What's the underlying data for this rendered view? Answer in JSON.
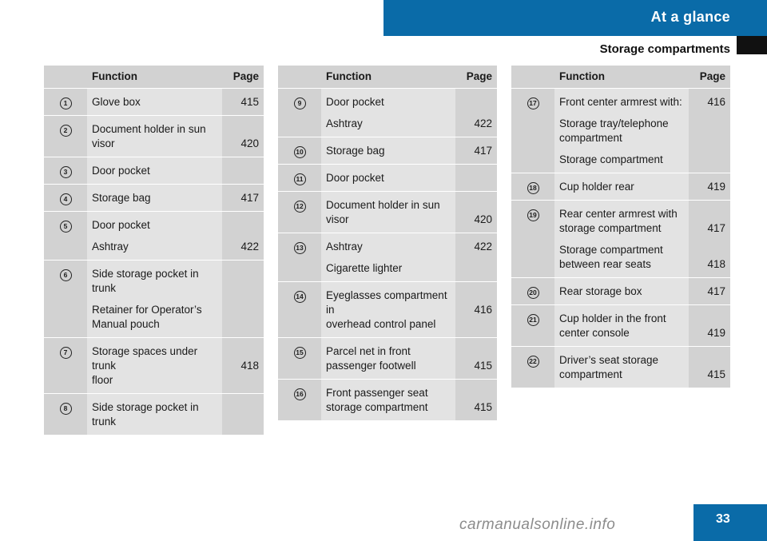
{
  "header": {
    "title": "At a glance",
    "section": "Storage compartments"
  },
  "columns": {
    "function": "Function",
    "page": "Page"
  },
  "tables": [
    {
      "rows": [
        {
          "num": "1",
          "items": [
            {
              "lines": [
                "Glove box"
              ],
              "page": "415"
            }
          ]
        },
        {
          "num": "2",
          "items": [
            {
              "lines": [
                "Document holder in sun",
                "visor"
              ],
              "page": "420"
            }
          ]
        },
        {
          "num": "3",
          "items": [
            {
              "lines": [
                "Door pocket"
              ],
              "page": ""
            }
          ]
        },
        {
          "num": "4",
          "items": [
            {
              "lines": [
                "Storage bag"
              ],
              "page": "417"
            }
          ]
        },
        {
          "num": "5",
          "items": [
            {
              "lines": [
                "Door pocket"
              ],
              "page": ""
            },
            {
              "lines": [
                "Ashtray"
              ],
              "page": "422"
            }
          ]
        },
        {
          "num": "6",
          "items": [
            {
              "lines": [
                "Side storage pocket in",
                "trunk"
              ],
              "page": ""
            },
            {
              "lines": [
                "Retainer for Operator’s",
                "Manual pouch"
              ],
              "page": ""
            }
          ]
        },
        {
          "num": "7",
          "items": [
            {
              "lines": [
                "Storage spaces under trunk",
                "floor"
              ],
              "page": "418"
            }
          ]
        },
        {
          "num": "8",
          "items": [
            {
              "lines": [
                "Side storage pocket in",
                "trunk"
              ],
              "page": ""
            }
          ]
        }
      ]
    },
    {
      "rows": [
        {
          "num": "9",
          "items": [
            {
              "lines": [
                "Door pocket"
              ],
              "page": ""
            },
            {
              "lines": [
                "Ashtray"
              ],
              "page": "422"
            }
          ]
        },
        {
          "num": "10",
          "items": [
            {
              "lines": [
                "Storage bag"
              ],
              "page": "417"
            }
          ]
        },
        {
          "num": "11",
          "items": [
            {
              "lines": [
                "Door pocket"
              ],
              "page": ""
            }
          ]
        },
        {
          "num": "12",
          "items": [
            {
              "lines": [
                "Document holder in sun",
                "visor"
              ],
              "page": "420"
            }
          ]
        },
        {
          "num": "13",
          "items": [
            {
              "lines": [
                "Ashtray"
              ],
              "page": "422"
            },
            {
              "lines": [
                "Cigarette lighter"
              ],
              "page": ""
            }
          ]
        },
        {
          "num": "14",
          "items": [
            {
              "lines": [
                "Eyeglasses compartment in",
                "overhead control panel"
              ],
              "page": "416"
            }
          ]
        },
        {
          "num": "15",
          "items": [
            {
              "lines": [
                "Parcel net in front",
                "passenger footwell"
              ],
              "page": "415"
            }
          ]
        },
        {
          "num": "16",
          "items": [
            {
              "lines": [
                "Front passenger seat",
                "storage compartment"
              ],
              "page": "415"
            }
          ]
        }
      ]
    },
    {
      "rows": [
        {
          "num": "17",
          "items": [
            {
              "lines": [
                "Front center armrest with:"
              ],
              "page": "416"
            },
            {
              "lines": [
                "Storage tray/telephone",
                "compartment"
              ],
              "page": ""
            },
            {
              "lines": [
                "Storage compartment"
              ],
              "page": ""
            }
          ]
        },
        {
          "num": "18",
          "items": [
            {
              "lines": [
                "Cup holder rear"
              ],
              "page": "419"
            }
          ]
        },
        {
          "num": "19",
          "items": [
            {
              "lines": [
                "Rear center armrest with",
                "storage compartment"
              ],
              "page": "417"
            },
            {
              "lines": [
                "Storage compartment",
                "between rear seats"
              ],
              "page": "418"
            }
          ]
        },
        {
          "num": "20",
          "items": [
            {
              "lines": [
                "Rear storage box"
              ],
              "page": "417"
            }
          ]
        },
        {
          "num": "21",
          "items": [
            {
              "lines": [
                "Cup holder in the front",
                "center console"
              ],
              "page": "419"
            }
          ]
        },
        {
          "num": "22",
          "items": [
            {
              "lines": [
                "Driver’s seat storage",
                "compartment"
              ],
              "page": "415"
            }
          ]
        }
      ]
    }
  ],
  "page_number": "33",
  "watermark": "carmanualsonline.info"
}
